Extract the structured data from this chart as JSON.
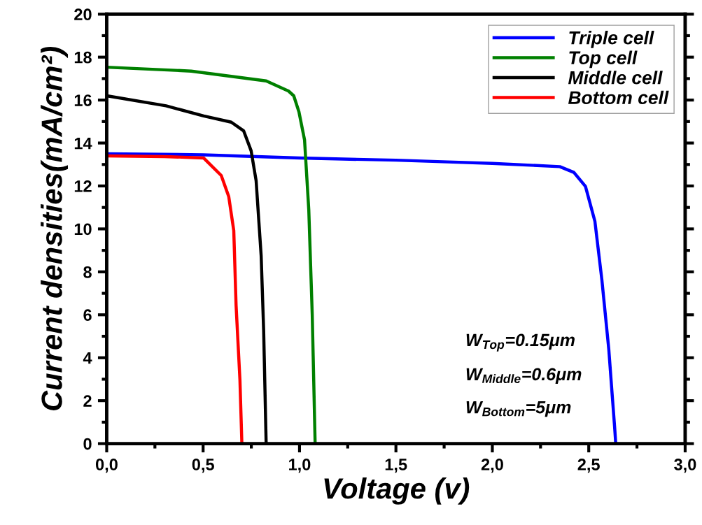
{
  "chart_data": {
    "type": "line",
    "xlabel": "Voltage (v)",
    "ylabel": "Current densities(mA/cm²)",
    "xlim": [
      0,
      3.0
    ],
    "ylim": [
      0,
      20
    ],
    "xticks": [
      {
        "value": 0,
        "label": "0,0"
      },
      {
        "value": 0.25,
        "label": null
      },
      {
        "value": 0.5,
        "label": "0,5"
      },
      {
        "value": 0.75,
        "label": null
      },
      {
        "value": 1.0,
        "label": "1,0"
      },
      {
        "value": 1.25,
        "label": null
      },
      {
        "value": 1.5,
        "label": "1,5"
      },
      {
        "value": 1.75,
        "label": null
      },
      {
        "value": 2.0,
        "label": "2,0"
      },
      {
        "value": 2.25,
        "label": null
      },
      {
        "value": 2.5,
        "label": "2,5"
      },
      {
        "value": 2.75,
        "label": null
      },
      {
        "value": 3.0,
        "label": "3,0"
      }
    ],
    "yticks": [
      0,
      {
        "value": 1,
        "label": null
      },
      2,
      {
        "value": 3,
        "label": null
      },
      4,
      {
        "value": 5,
        "label": null
      },
      6,
      {
        "value": 7,
        "label": null
      },
      8,
      {
        "value": 9,
        "label": null
      },
      10,
      {
        "value": 11,
        "label": null
      },
      12,
      {
        "value": 13,
        "label": null
      },
      14,
      {
        "value": 15,
        "label": null
      },
      16,
      {
        "value": 17,
        "label": null
      },
      18,
      {
        "value": 19,
        "label": null
      },
      20
    ],
    "grid": false,
    "legend": "top right",
    "marker": "none",
    "line_style": "solid",
    "series": [
      {
        "name": "Triple cell",
        "color": "#0000ff",
        "x": [
          0,
          0.5,
          1.0,
          1.5,
          1.77,
          2.0,
          2.35,
          2.423,
          2.483,
          2.532,
          2.568,
          2.604,
          2.622,
          2.634,
          2.64
        ],
        "values": [
          13.5,
          13.45,
          13.3,
          13.2,
          13.12,
          13.05,
          12.9,
          12.63,
          11.98,
          10.35,
          7.64,
          4.39,
          2.22,
          0.8,
          0
        ]
      },
      {
        "name": "Top cell",
        "color": "#008000",
        "x": [
          0,
          0.438,
          0.827,
          0.943,
          0.97,
          0.997,
          1.026,
          1.048,
          1.066,
          1.081
        ],
        "values": [
          17.53,
          17.35,
          16.89,
          16.42,
          16.2,
          15.45,
          14.15,
          10.9,
          6.0,
          0
        ]
      },
      {
        "name": "Middle cell",
        "color": "#000000",
        "x": [
          0,
          0.308,
          0.503,
          0.646,
          0.71,
          0.749,
          0.775,
          0.801,
          0.814,
          0.827
        ],
        "values": [
          16.2,
          15.73,
          15.26,
          14.97,
          14.57,
          13.64,
          12.24,
          8.76,
          5.27,
          0
        ]
      },
      {
        "name": "Bottom cell",
        "color": "#ff0000",
        "x": [
          0,
          0.3,
          0.503,
          0.594,
          0.633,
          0.659,
          0.671,
          0.691,
          0.701
        ],
        "values": [
          13.4,
          13.37,
          13.3,
          12.49,
          11.5,
          9.92,
          6.44,
          2.96,
          0
        ]
      }
    ],
    "annotations": [
      "W$_{Top}$=0.15μm",
      "W$_{Middle}$=0.6μm",
      "W$_{Bottom}$=5μm"
    ]
  }
}
